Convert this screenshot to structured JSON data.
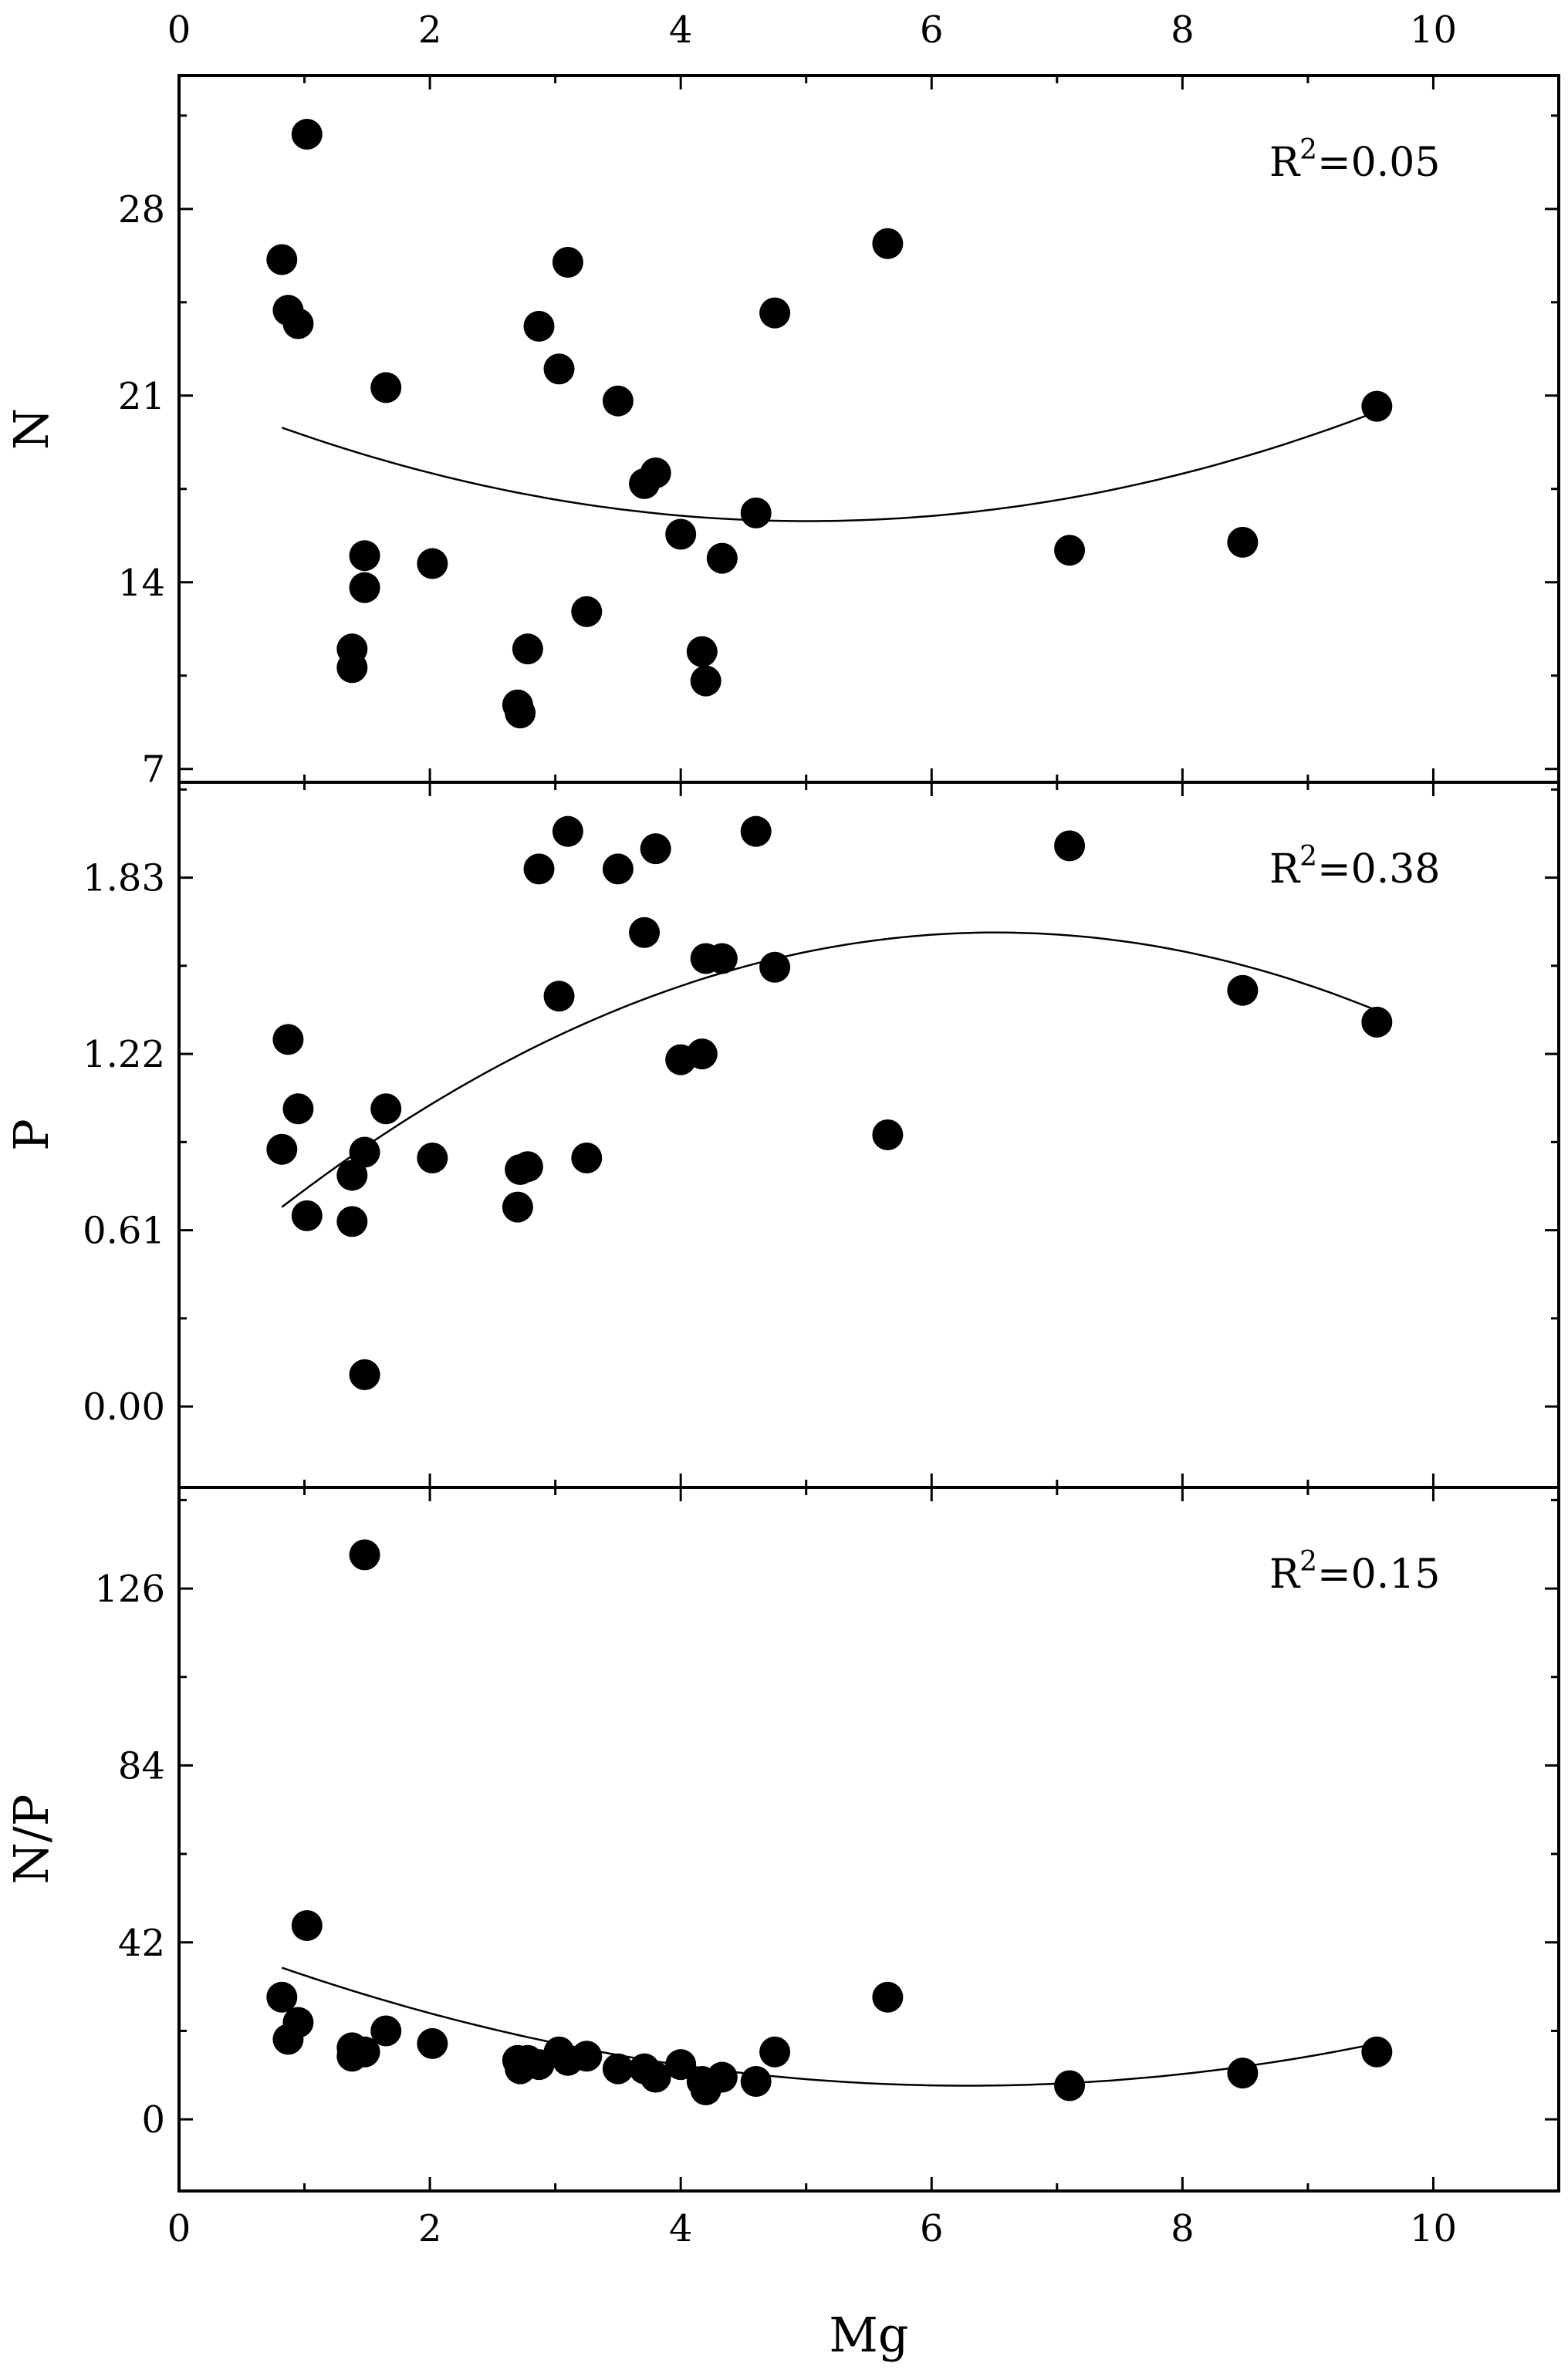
{
  "chart_data": {
    "type": "scatter",
    "layout": "three vertically stacked panels sharing x-axis",
    "xlabel": "Mg",
    "xlim": [
      0,
      11
    ],
    "xticks": [
      0,
      2,
      4,
      6,
      8,
      10
    ],
    "xtick_labels": [
      "0",
      "2",
      "4",
      "6",
      "8",
      "10"
    ],
    "grid": false,
    "panels": [
      {
        "ylabel": "N",
        "ylim": [
          6.5,
          33
        ],
        "yticks": [
          7,
          14,
          21,
          28
        ],
        "ytick_labels": [
          "7",
          "14",
          "21",
          "28"
        ],
        "r2_label": "R²=0.05",
        "fit": {
          "type": "quadratic",
          "x_range": [
            0.82,
            9.55
          ],
          "y_at": [
            [
              0.82,
              19.8
            ],
            [
              5.2,
              16.3
            ],
            [
              9.55,
              20.4
            ]
          ]
        },
        "points": [
          [
            1.02,
            30.8
          ],
          [
            0.82,
            26.1
          ],
          [
            0.87,
            24.2
          ],
          [
            0.95,
            23.7
          ],
          [
            1.65,
            21.3
          ],
          [
            1.48,
            15.0
          ],
          [
            1.48,
            13.8
          ],
          [
            1.38,
            11.5
          ],
          [
            1.38,
            10.8
          ],
          [
            2.02,
            14.7
          ],
          [
            2.7,
            9.4
          ],
          [
            2.72,
            9.1
          ],
          [
            2.78,
            11.5
          ],
          [
            2.87,
            23.6
          ],
          [
            3.03,
            22.0
          ],
          [
            3.1,
            26.0
          ],
          [
            3.25,
            12.9
          ],
          [
            3.5,
            20.8
          ],
          [
            3.71,
            17.7
          ],
          [
            3.8,
            18.1
          ],
          [
            4.0,
            15.8
          ],
          [
            4.17,
            11.4
          ],
          [
            4.2,
            10.3
          ],
          [
            4.33,
            14.9
          ],
          [
            4.6,
            16.6
          ],
          [
            4.75,
            24.1
          ],
          [
            5.65,
            26.7
          ],
          [
            7.1,
            15.2
          ],
          [
            8.48,
            15.5
          ],
          [
            9.55,
            20.6
          ]
        ]
      },
      {
        "ylabel": "P",
        "ylim": [
          -0.28,
          2.16
        ],
        "yticks": [
          0.0,
          0.61,
          1.22,
          1.83
        ],
        "ytick_labels": [
          "0.00",
          "0.61",
          "1.22",
          "1.83"
        ],
        "r2_label": "R²=0.38",
        "fit": {
          "type": "quadratic",
          "x_range": [
            0.82,
            9.55
          ],
          "y_at": [
            [
              0.82,
              0.69
            ],
            [
              6.45,
              1.64
            ],
            [
              9.55,
              1.37
            ]
          ]
        },
        "points": [
          [
            0.82,
            0.89
          ],
          [
            0.87,
            1.27
          ],
          [
            0.95,
            1.03
          ],
          [
            1.02,
            0.66
          ],
          [
            1.38,
            0.8
          ],
          [
            1.38,
            0.64
          ],
          [
            1.48,
            0.88
          ],
          [
            1.48,
            0.11
          ],
          [
            1.65,
            1.03
          ],
          [
            2.02,
            0.86
          ],
          [
            2.7,
            0.69
          ],
          [
            2.72,
            0.82
          ],
          [
            2.78,
            0.83
          ],
          [
            2.87,
            1.86
          ],
          [
            3.03,
            1.42
          ],
          [
            3.1,
            1.99
          ],
          [
            3.25,
            0.86
          ],
          [
            3.5,
            1.86
          ],
          [
            3.71,
            1.64
          ],
          [
            3.8,
            1.93
          ],
          [
            4.0,
            1.2
          ],
          [
            4.17,
            1.22
          ],
          [
            4.2,
            1.55
          ],
          [
            4.33,
            1.55
          ],
          [
            4.6,
            1.99
          ],
          [
            4.75,
            1.52
          ],
          [
            5.65,
            0.94
          ],
          [
            7.1,
            1.94
          ],
          [
            8.48,
            1.44
          ],
          [
            9.55,
            1.33
          ]
        ]
      },
      {
        "ylabel": "N/P",
        "ylim": [
          -17,
          150
        ],
        "yticks": [
          0,
          42,
          84,
          126
        ],
        "ytick_labels": [
          "0",
          "42",
          "84",
          "126"
        ],
        "r2_label": "R²=0.15",
        "fit": {
          "type": "quadratic",
          "x_range": [
            0.82,
            9.55
          ],
          "y_at": [
            [
              0.82,
              36.0
            ],
            [
              6.2,
              8.0
            ],
            [
              9.55,
              18.0
            ]
          ]
        },
        "points": [
          [
            1.48,
            134.0
          ],
          [
            1.02,
            46.0
          ],
          [
            0.82,
            29.0
          ],
          [
            0.87,
            19.0
          ],
          [
            0.95,
            23.0
          ],
          [
            1.38,
            15.0
          ],
          [
            1.38,
            17.0
          ],
          [
            1.48,
            16.0
          ],
          [
            1.65,
            21.0
          ],
          [
            2.02,
            18.0
          ],
          [
            2.7,
            14.0
          ],
          [
            2.72,
            12.0
          ],
          [
            2.78,
            14.0
          ],
          [
            2.87,
            13.0
          ],
          [
            3.03,
            16.0
          ],
          [
            3.1,
            14.0
          ],
          [
            3.25,
            15.0
          ],
          [
            3.5,
            12.0
          ],
          [
            3.71,
            12.0
          ],
          [
            3.8,
            10.0
          ],
          [
            4.0,
            13.0
          ],
          [
            4.17,
            9.0
          ],
          [
            4.2,
            7.0
          ],
          [
            4.33,
            10.0
          ],
          [
            4.6,
            9.0
          ],
          [
            4.75,
            16.0
          ],
          [
            5.65,
            29.0
          ],
          [
            7.1,
            8.0
          ],
          [
            8.48,
            11.0
          ],
          [
            9.55,
            16.0
          ]
        ]
      }
    ]
  }
}
